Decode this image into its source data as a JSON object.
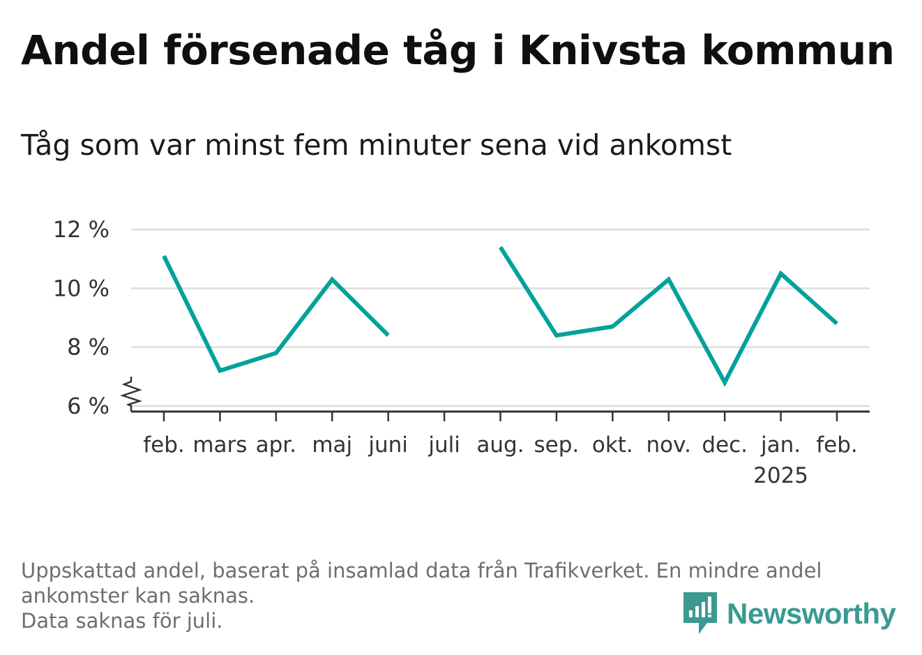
{
  "title": "Andel försenade tåg i Knivsta kommun",
  "subtitle": "Tåg som var minst fem minuter sena vid ankomst",
  "chart_data": {
    "type": "line",
    "categories": [
      "feb.",
      "mars",
      "apr.",
      "maj",
      "juni",
      "juli",
      "aug.",
      "sep.",
      "okt.",
      "nov.",
      "dec.",
      "jan.",
      "feb."
    ],
    "year_label": "2025",
    "year_label_under_category_index": 11,
    "series": [
      {
        "values": [
          11.1,
          7.2,
          7.8,
          10.3,
          8.4,
          null,
          11.4,
          8.4,
          8.7,
          10.3,
          6.8,
          10.5,
          8.8
        ],
        "color": "#00a29a"
      }
    ],
    "ylim": [
      6,
      12
    ],
    "yticks": [
      6,
      8,
      10,
      12
    ],
    "ytick_labels": [
      "6 %",
      "8 %",
      "10 %",
      "12 %"
    ],
    "axis_break": true,
    "grid": true,
    "legend": "none"
  },
  "footnote": {
    "line1": "Uppskattad andel, baserat på insamlad data från Trafikverket. En mindre andel",
    "line2": "ankomster kan saknas.",
    "line3": "Data saknas för juli."
  },
  "brand": {
    "name": "Newsworthy",
    "color": "#3a9a92",
    "icon": "newsworthy-logo-icon"
  }
}
